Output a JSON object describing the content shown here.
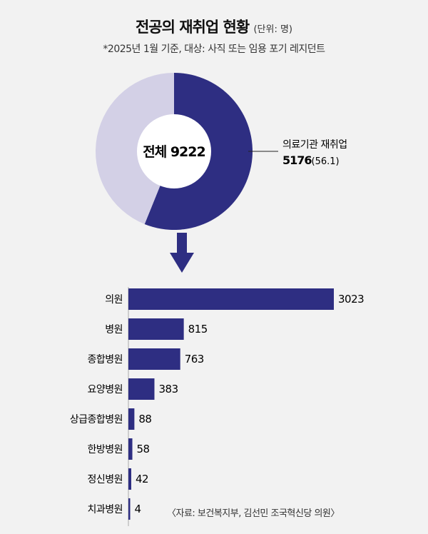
{
  "title": "전공의 재취업 현황",
  "unit": "(단위: 명)",
  "subtitle": "*2025년 1월 기준, 대상: 사직 또는 임용 포기 레지던트",
  "colors": {
    "primary": "#2e2e82",
    "light": "#d3d0e6",
    "background": "#f2f2f2"
  },
  "chart_data": [
    {
      "type": "pie",
      "center_label": "전체 9222",
      "total": 9222,
      "slices": [
        {
          "label": "의료기관 재취업",
          "value": 5176,
          "percent": 56.1
        },
        {
          "label": "",
          "value": 4046
        }
      ],
      "annotation": {
        "label": "의료기관 재취업",
        "value": "5176",
        "percent": "(56.1)"
      }
    },
    {
      "type": "bar",
      "orientation": "horizontal",
      "categories": [
        "의원",
        "병원",
        "종합병원",
        "요양병원",
        "상급종합병원",
        "한방병원",
        "정신병원",
        "치과병원"
      ],
      "values": [
        3023,
        815,
        763,
        383,
        88,
        58,
        42,
        4
      ],
      "value_labels": [
        "3023",
        "815",
        "763",
        "383",
        "88",
        "58",
        "42",
        "4"
      ],
      "xlim": [
        0,
        3023
      ]
    }
  ],
  "source": "〈자료: 보건복지부, 김선민 조국혁신당 의원〉"
}
